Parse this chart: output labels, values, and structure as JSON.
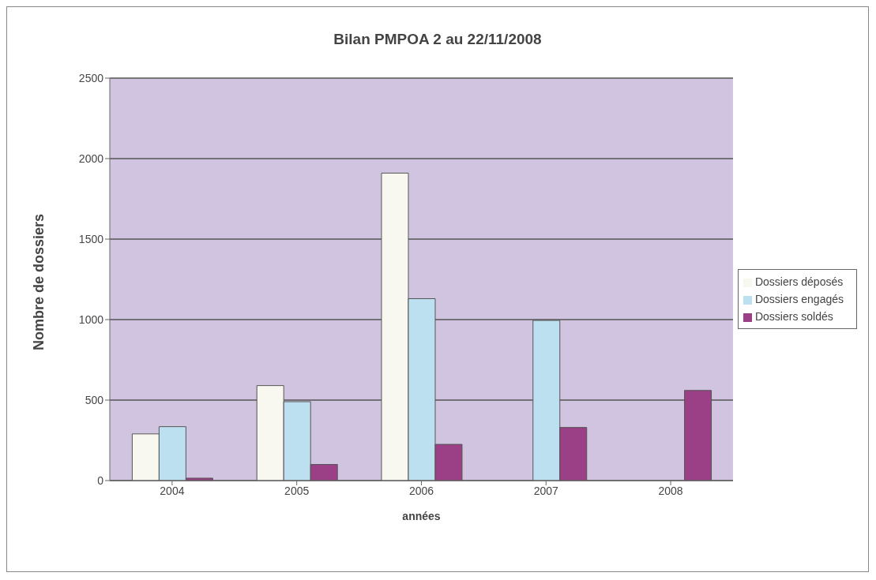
{
  "chart_data": {
    "type": "bar",
    "title": "Bilan PMPOA 2 au 22/11/2008",
    "xlabel": "années",
    "ylabel": "Nombre de dossiers",
    "categories": [
      "2004",
      "2005",
      "2006",
      "2007",
      "2008"
    ],
    "series": [
      {
        "name": "Dossiers déposés",
        "color": "#f8f8f0",
        "values": [
          290,
          590,
          1910,
          null,
          null
        ]
      },
      {
        "name": "Dossiers engagés",
        "color": "#bde0f0",
        "values": [
          335,
          490,
          1130,
          995,
          null
        ]
      },
      {
        "name": "Dossiers soldés",
        "color": "#9b3f86",
        "values": [
          15,
          100,
          225,
          330,
          560
        ]
      }
    ],
    "ylim": [
      0,
      2500
    ],
    "yticks": [
      0,
      500,
      1000,
      1500,
      2000,
      2500
    ],
    "grid": "y",
    "legend": "right"
  }
}
